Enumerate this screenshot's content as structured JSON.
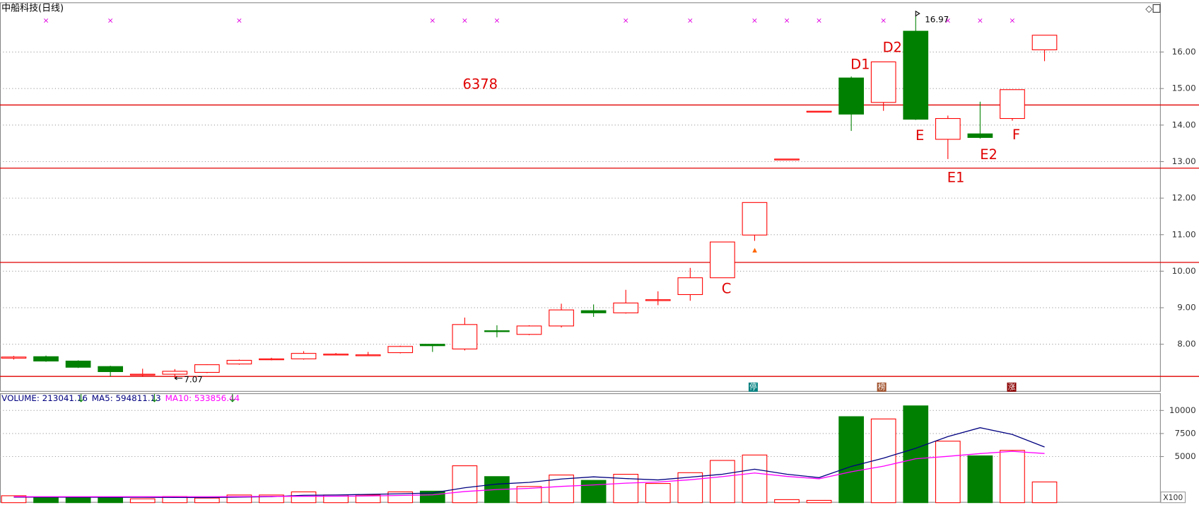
{
  "chart_data": [
    {
      "type": "candlestick",
      "title": "中船科技(日线)",
      "open": [
        7.62,
        7.66,
        7.54,
        7.39,
        7.17,
        7.18,
        7.23,
        7.46,
        7.58,
        7.6,
        7.72,
        7.7,
        7.77,
        8.0,
        7.87,
        8.37,
        8.27,
        8.5,
        8.92,
        8.86,
        9.2,
        9.36,
        9.82,
        10.99,
        13.07,
        14.38,
        15.29,
        14.62,
        16.57,
        13.61,
        13.76,
        14.18,
        16.06
      ],
      "high": [
        7.68,
        7.69,
        7.56,
        7.41,
        7.33,
        7.32,
        7.45,
        7.58,
        7.63,
        7.81,
        7.76,
        7.79,
        7.96,
        8.01,
        8.73,
        8.52,
        8.52,
        9.11,
        9.09,
        9.49,
        9.45,
        10.09,
        10.8,
        11.88,
        13.07,
        14.38,
        15.33,
        15.73,
        16.97,
        14.26,
        14.64,
        14.97,
        16.46
      ],
      "low": [
        7.58,
        7.52,
        7.35,
        7.12,
        7.12,
        7.07,
        7.21,
        7.44,
        7.56,
        7.58,
        7.7,
        7.69,
        7.75,
        7.79,
        7.83,
        8.19,
        8.25,
        8.46,
        8.75,
        8.84,
        9.07,
        9.19,
        9.82,
        10.83,
        13.07,
        14.38,
        13.84,
        14.39,
        14.14,
        13.07,
        13.63,
        14.12,
        15.75
      ],
      "close": [
        7.65,
        7.54,
        7.37,
        7.25,
        7.18,
        7.26,
        7.44,
        7.56,
        7.6,
        7.75,
        7.73,
        7.71,
        7.94,
        7.96,
        8.54,
        8.35,
        8.5,
        8.94,
        8.86,
        9.13,
        9.22,
        9.82,
        10.8,
        11.88,
        13.07,
        14.38,
        14.3,
        15.73,
        14.16,
        14.18,
        13.66,
        14.97,
        16.46
      ],
      "up_color": "#ff0000",
      "down_color": "#008000",
      "ylim": [
        6.7,
        17.36
      ],
      "yticks": [
        {
          "value": 8,
          "label": "8.00"
        },
        {
          "value": 9,
          "label": "9.00"
        },
        {
          "value": 10,
          "label": "10.00"
        },
        {
          "value": 11,
          "label": "11.00"
        },
        {
          "value": 12,
          "label": "12.00"
        },
        {
          "value": 13,
          "label": "13.00"
        },
        {
          "value": 14,
          "label": "14.00"
        },
        {
          "value": 15,
          "label": "15.00"
        },
        {
          "value": 16,
          "label": "16.00"
        }
      ],
      "grid": true,
      "hlines": [
        14.55,
        12.82,
        10.24,
        7.12
      ],
      "hline_color": "#e00000",
      "annotations": [
        "6378",
        "C",
        "D1",
        "D2",
        "E",
        "E1",
        "E2",
        "F"
      ],
      "flags": [
        "停",
        "榜",
        "涨"
      ]
    },
    {
      "type": "bar",
      "label": "VOLUME: 213041.16",
      "unit": "X100",
      "values": [
        750,
        580,
        580,
        580,
        420,
        670,
        500,
        830,
        830,
        1170,
        830,
        830,
        1170,
        1250,
        4000,
        2830,
        1750,
        3000,
        2420,
        3080,
        2080,
        3250,
        4580,
        5170,
        330,
        250,
        9330,
        9080,
        10500,
        6670,
        5080,
        5670,
        2250
      ],
      "series": [
        {
          "name": "MA5: 594811.13",
          "color": "#000080",
          "values": [
            600,
            600,
            590,
            585,
            582,
            566,
            550,
            600,
            650,
            800,
            832,
            898,
            966,
            1050,
            1616,
            2016,
            2200,
            2566,
            2800,
            2616,
            2466,
            2766,
            3082,
            3632,
            3082,
            2716,
            3932,
            4832,
            5898,
            7166,
            8132,
            7400,
            6034
          ]
        },
        {
          "name": "MA10: 533856.44",
          "color": "#ff00ff",
          "values": [
            650,
            650,
            650,
            650,
            650,
            650,
            650,
            660,
            680,
            691,
            699,
            724,
            783,
            850,
            1208,
            1424,
            1549,
            1766,
            1925,
            2116,
            2241,
            2483,
            2824,
            3216,
            2849,
            2591,
            3349,
            3957,
            4765,
            5024,
            5324,
            5566,
            5333
          ]
        }
      ],
      "ylim": [
        0,
        11700
      ],
      "yticks": [
        5000,
        7500,
        10000
      ],
      "grid": true
    }
  ]
}
